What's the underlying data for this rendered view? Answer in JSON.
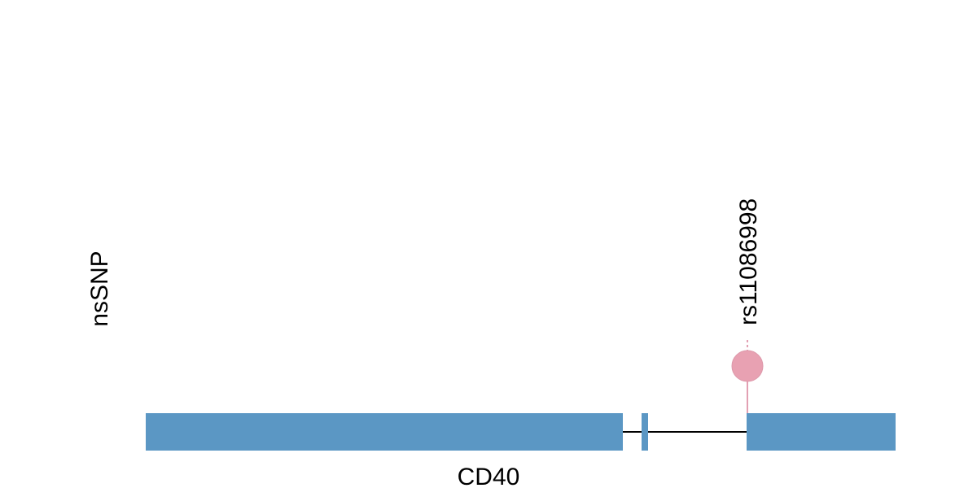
{
  "track": {
    "label": "nsSNP"
  },
  "snps": [
    {
      "label": "rs11086998"
    }
  ],
  "gene": {
    "label": "CD40"
  }
}
